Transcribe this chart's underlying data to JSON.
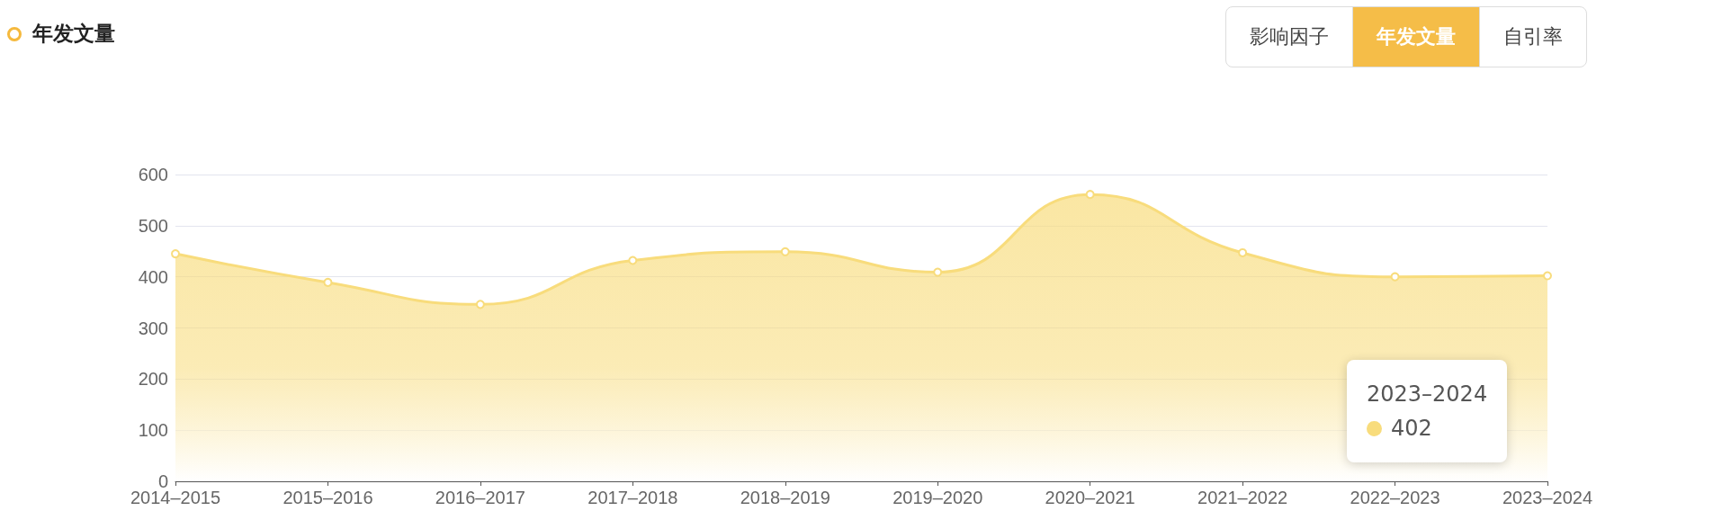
{
  "chart_data": {
    "type": "area",
    "title": "年发文量",
    "categories": [
      "2014–2015",
      "2015–2016",
      "2016–2017",
      "2017–2018",
      "2018–2019",
      "2019–2020",
      "2020–2021",
      "2021–2022",
      "2022–2023",
      "2023–2024"
    ],
    "series": [
      {
        "color": "#f8dc7c",
        "values": [
          445,
          389,
          346,
          432,
          449,
          409,
          561,
          447,
          400,
          402
        ]
      }
    ],
    "ylim": [
      0,
      600
    ],
    "yticks": [
      0,
      100,
      200,
      300,
      400,
      500,
      600
    ],
    "grid": "y",
    "marker": "circle",
    "annotations": [
      "影响因子",
      "年发文量",
      "自引率",
      "2023–2024\n402"
    ]
  }
}
